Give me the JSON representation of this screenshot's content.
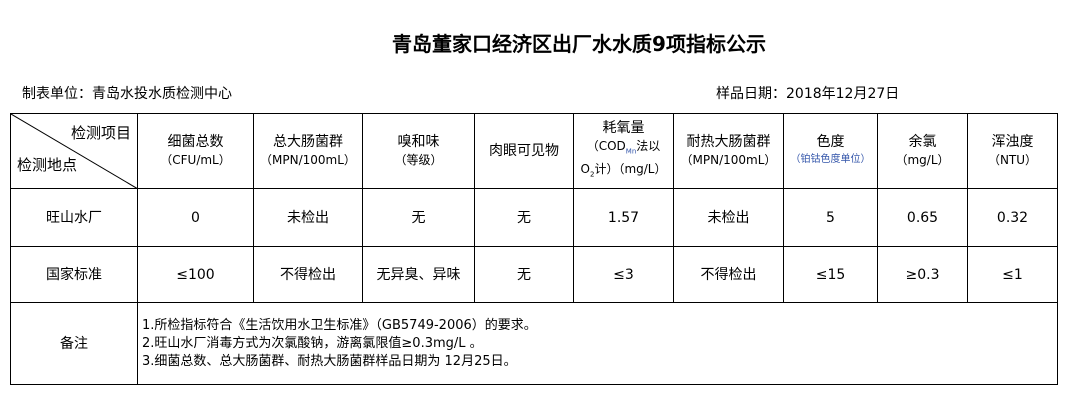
{
  "title": "青岛董家口经济区出厂水水质9项指标公示",
  "unit_label": "制表单位：青岛水投水质检测中心",
  "date_label": "样品日期：2018年12月27日",
  "corner": {
    "top": "检测项目",
    "bottom": "检测地点"
  },
  "headers": [
    {
      "name": "细菌总数",
      "unit": "（CFU/mL）"
    },
    {
      "name": "总大肠菌群",
      "unit": "（MPN/100mL）"
    },
    {
      "name": "嗅和味",
      "unit": "（等级）"
    },
    {
      "name": "肉眼可见物",
      "unit": ""
    },
    {
      "name": "耗氧量",
      "unit": "（COD",
      "unit_sub": "Mn",
      "unit2": "法以",
      "unit3": "O",
      "unit3_sub": "2",
      "unit4": "计）（mg/L）"
    },
    {
      "name": "耐热大肠菌群",
      "unit": "（MPN/100mL）"
    },
    {
      "name": "色度",
      "unit": "（铂钴色度单位）"
    },
    {
      "name": "余氯",
      "unit": "（mg/L）"
    },
    {
      "name": "浑浊度",
      "unit": "（NTU）"
    }
  ],
  "rows": [
    {
      "label": "旺山水厂",
      "values": [
        "0",
        "未检出",
        "无",
        "无",
        "1.57",
        "未检出",
        "5",
        "0.65",
        "0.32"
      ]
    },
    {
      "label": "国家标准",
      "values": [
        "≤100",
        "不得检出",
        "无异臭、异味",
        "无",
        "≤3",
        "不得检出",
        "≤15",
        "≥0.3",
        "≤1"
      ]
    }
  ],
  "notes": {
    "label": "备注",
    "lines": [
      "1.所检指标符合《生活饮用水卫生标准》（GB5749-2006）的要求。",
      "2.旺山水厂消毒方式为次氯酸钠，游离氯限值≥0.3mg/L 。",
      "3.细菌总数、总大肠菌群、耐热大肠菌群样品日期为 12月25日。"
    ]
  }
}
